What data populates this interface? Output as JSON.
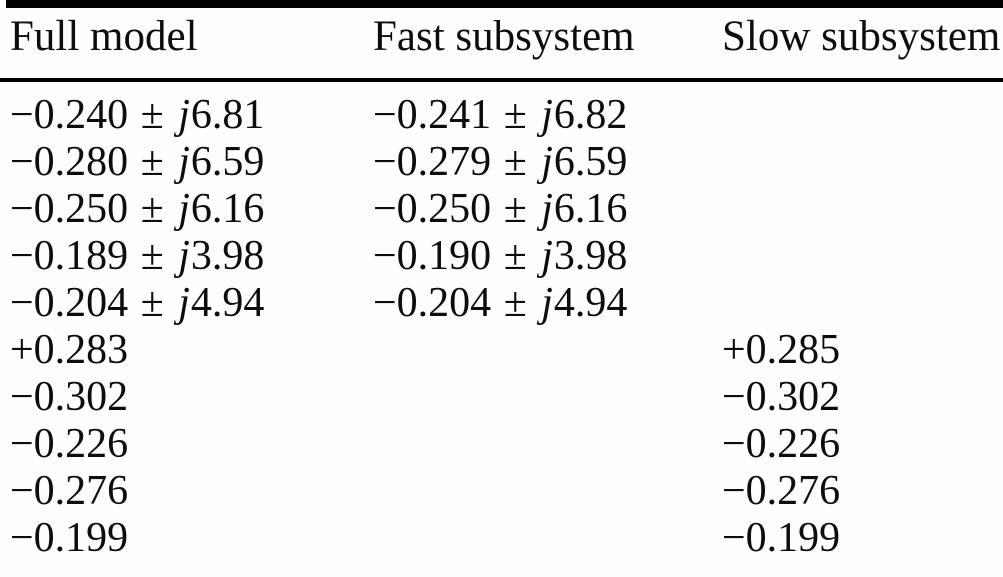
{
  "table": {
    "pm_symbol": "±",
    "imag_prefix": "j",
    "columns": [
      {
        "key": "full",
        "label": "Full model"
      },
      {
        "key": "fast",
        "label": "Fast subsystem"
      },
      {
        "key": "slow",
        "label": "Slow subsystem"
      }
    ],
    "rows": [
      {
        "full": {
          "re": "−0.240",
          "im": "6.81"
        },
        "fast": {
          "re": "−0.241",
          "im": "6.82"
        },
        "slow": null
      },
      {
        "full": {
          "re": "−0.280",
          "im": "6.59"
        },
        "fast": {
          "re": "−0.279",
          "im": "6.59"
        },
        "slow": null
      },
      {
        "full": {
          "re": "−0.250",
          "im": "6.16"
        },
        "fast": {
          "re": "−0.250",
          "im": "6.16"
        },
        "slow": null
      },
      {
        "full": {
          "re": "−0.189",
          "im": "3.98"
        },
        "fast": {
          "re": "−0.190",
          "im": "3.98"
        },
        "slow": null
      },
      {
        "full": {
          "re": "−0.204",
          "im": "4.94"
        },
        "fast": {
          "re": "−0.204",
          "im": "4.94"
        },
        "slow": null
      },
      {
        "full": {
          "re": "+0.283"
        },
        "fast": null,
        "slow": {
          "re": "+0.285"
        }
      },
      {
        "full": {
          "re": "−0.302"
        },
        "fast": null,
        "slow": {
          "re": "−0.302"
        }
      },
      {
        "full": {
          "re": "−0.226"
        },
        "fast": null,
        "slow": {
          "re": "−0.226"
        }
      },
      {
        "full": {
          "re": "−0.276"
        },
        "fast": null,
        "slow": {
          "re": "−0.276"
        }
      },
      {
        "full": {
          "re": "−0.199"
        },
        "fast": null,
        "slow": {
          "re": "−0.199"
        }
      }
    ]
  },
  "colors": {
    "ink": "#0d0d0d",
    "paper": "#fefefe",
    "rule": "#000000"
  }
}
